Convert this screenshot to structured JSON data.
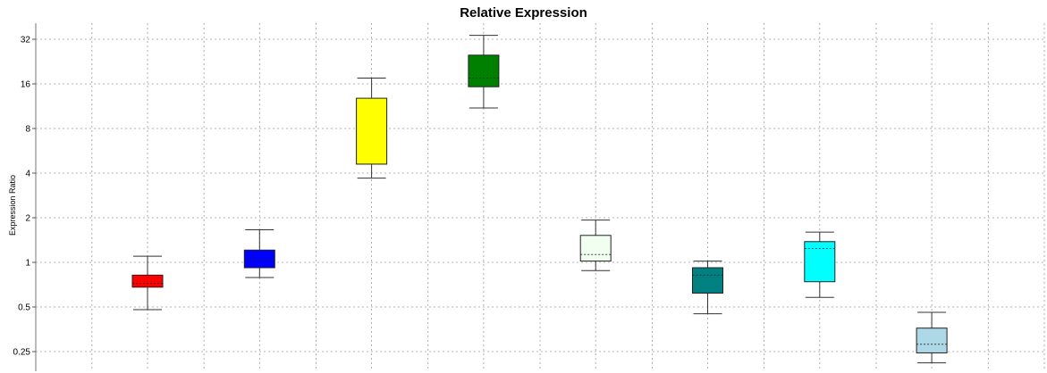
{
  "chart_data": {
    "type": "box",
    "title": "Relative Expression",
    "xlabel": "",
    "ylabel": "Expression Ratio",
    "y_scale": "log2",
    "ylim": [
      0.22,
      38
    ],
    "y_ticks": [
      {
        "value": 0.25,
        "label": "0.25"
      },
      {
        "value": 0.5,
        "label": "0.5"
      },
      {
        "value": 1,
        "label": "1"
      },
      {
        "value": 2,
        "label": "2"
      },
      {
        "value": 4,
        "label": "4"
      },
      {
        "value": 8,
        "label": "8"
      },
      {
        "value": 16,
        "label": "16"
      },
      {
        "value": 32,
        "label": "32"
      }
    ],
    "grid": true,
    "boxes": [
      {
        "color": "#ff0000",
        "whisker_low": 0.48,
        "q1": 0.68,
        "median": 0.72,
        "q3": 0.82,
        "whisker_high": 1.1
      },
      {
        "color": "#0000ff",
        "whisker_low": 0.79,
        "q1": 0.92,
        "median": 1.05,
        "q3": 1.21,
        "whisker_high": 1.66
      },
      {
        "color": "#ffff00",
        "whisker_low": 3.7,
        "q1": 4.6,
        "median": 4.6,
        "q3": 12.8,
        "whisker_high": 17.5
      },
      {
        "color": "#008000",
        "whisker_low": 11.0,
        "q1": 15.3,
        "median": 17.5,
        "q3": 25.0,
        "whisker_high": 34.0
      },
      {
        "color": "#f0fff0",
        "whisker_low": 0.88,
        "q1": 1.02,
        "median": 1.13,
        "q3": 1.52,
        "whisker_high": 1.93
      },
      {
        "color": "#008080",
        "whisker_low": 0.45,
        "q1": 0.62,
        "median": 0.82,
        "q3": 0.92,
        "whisker_high": 1.02
      },
      {
        "color": "#00ffff",
        "whisker_low": 0.58,
        "q1": 0.74,
        "median": 1.24,
        "q3": 1.38,
        "whisker_high": 1.6
      },
      {
        "color": "#add8e6",
        "whisker_low": 0.21,
        "q1": 0.245,
        "median": 0.28,
        "q3": 0.36,
        "whisker_high": 0.46
      }
    ]
  }
}
